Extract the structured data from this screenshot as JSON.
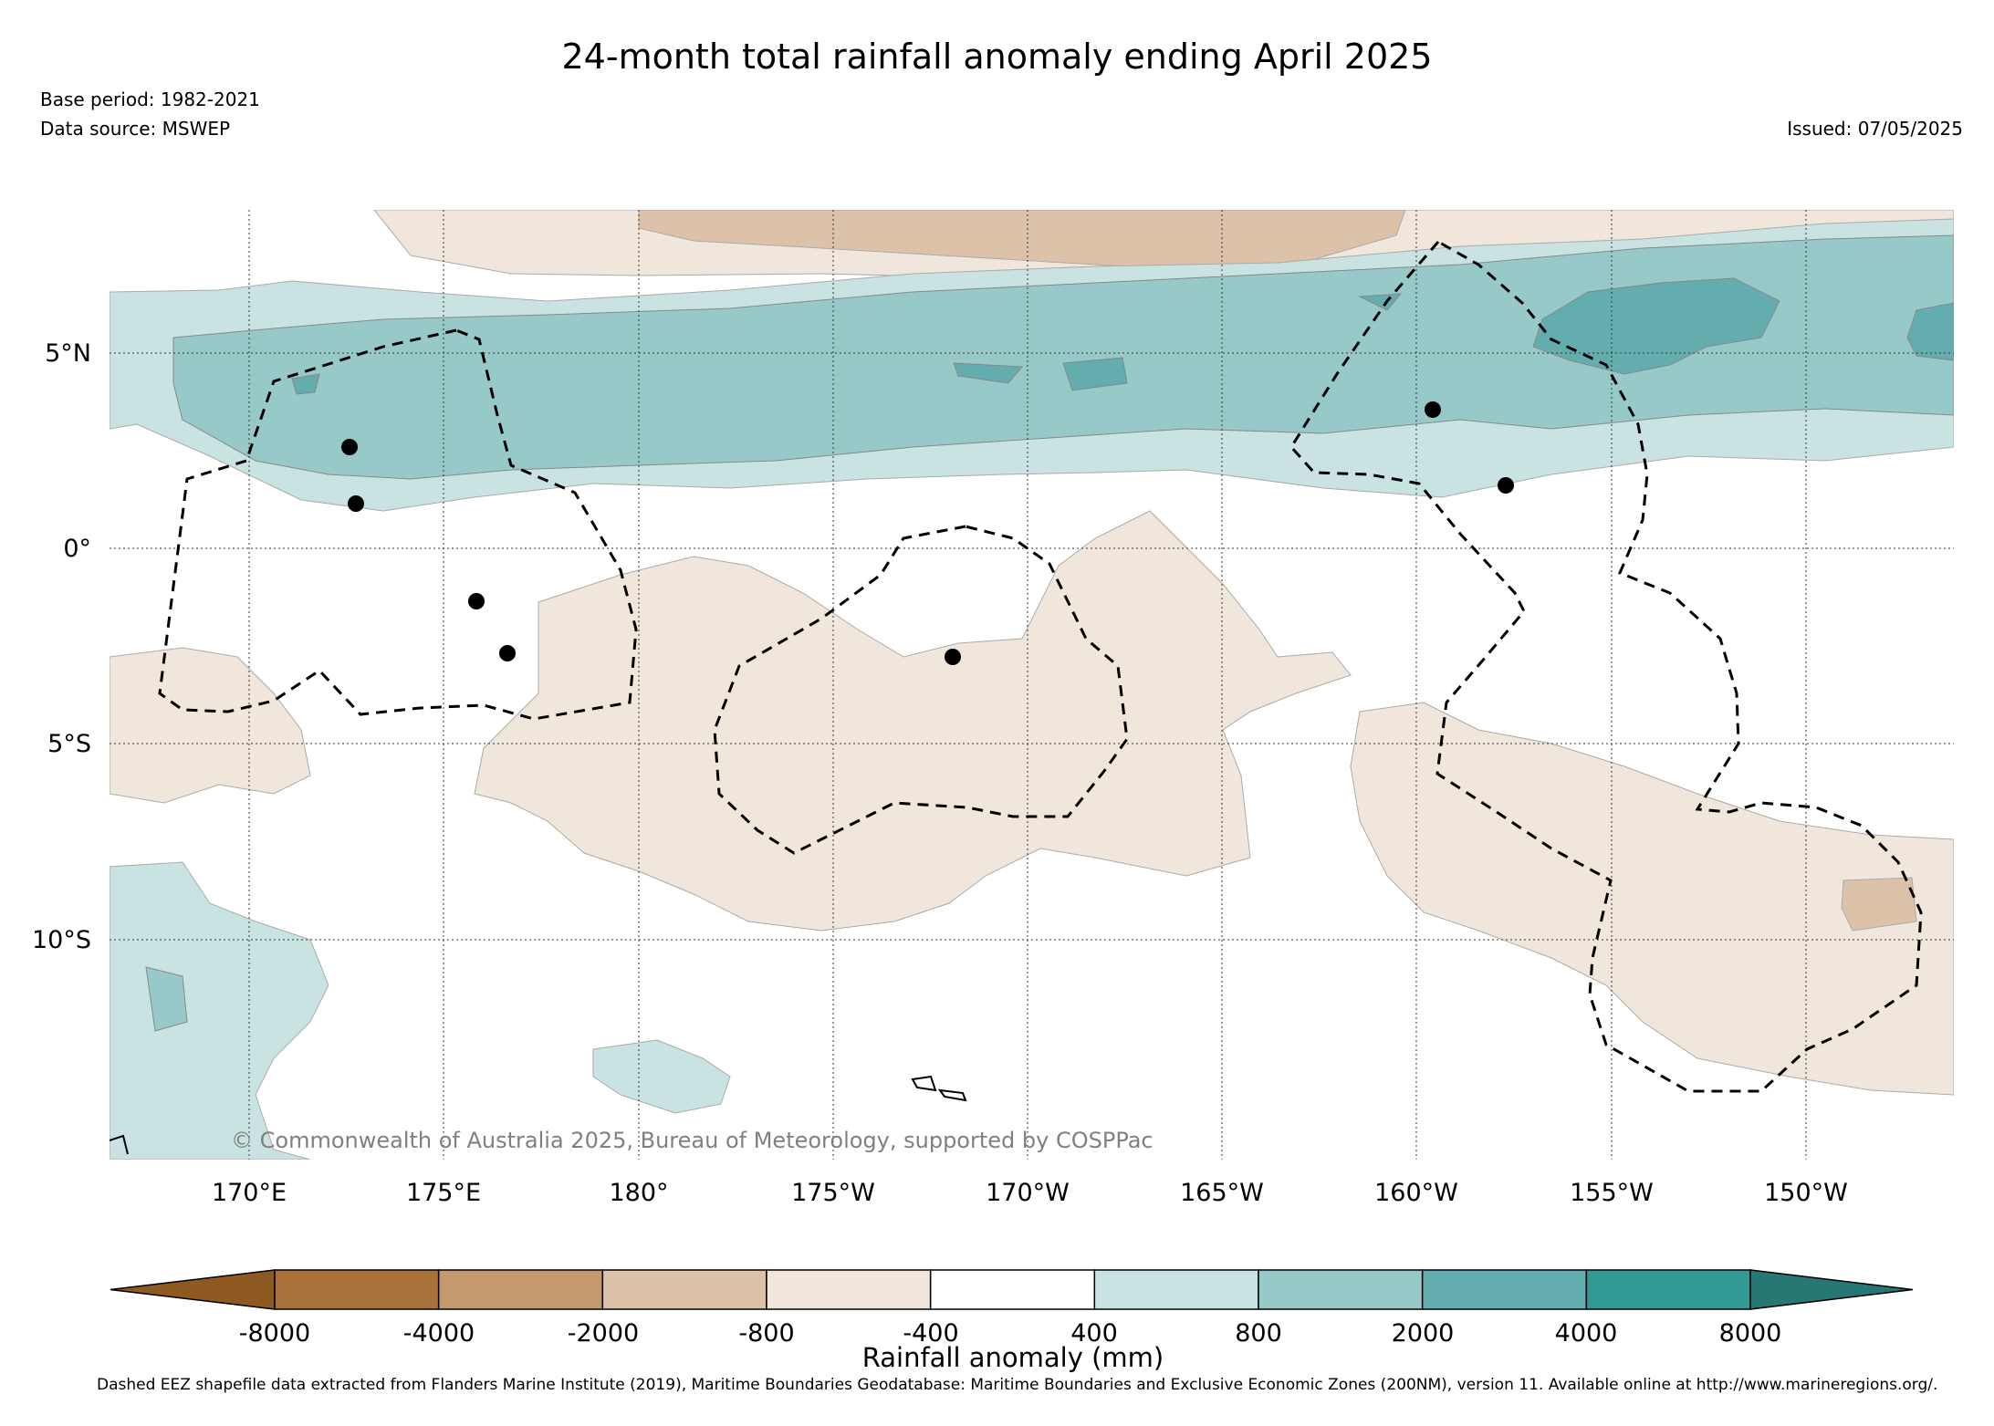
{
  "title": "24-month total rainfall anomaly ending April 2025",
  "base_period": "Base period: 1982-2021",
  "data_source": "Data source: MSWEP",
  "issued": "Issued: 07/05/2025",
  "copyright": "© Commonwealth of Australia 2025, Bureau of Meteorology, supported by COSPPac",
  "map": {
    "lon_labels": [
      "170°E",
      "175°E",
      "180°",
      "175°W",
      "170°W",
      "165°W",
      "160°W",
      "155°W",
      "150°W"
    ],
    "lat_labels": [
      "5°N",
      "0°",
      "5°S",
      "10°S"
    ],
    "gridlines": true,
    "eez_boundaries": "dashed",
    "island_markers": "filled black circles"
  },
  "colorbar": {
    "label": "Rainfall anomaly (mm)",
    "tick_labels": [
      "-8000",
      "-4000",
      "-2000",
      "-800",
      "-400",
      "400",
      "800",
      "2000",
      "4000",
      "8000"
    ],
    "colors": [
      "#8e5a22",
      "#a9713a",
      "#c4996e",
      "#dcc2a9",
      "#f1e6dc",
      "#ffffff",
      "#c9e3e3",
      "#98c9c9",
      "#63adae",
      "#329995",
      "#277775"
    ]
  },
  "footnote": "Dashed EEZ shapefile data extracted from Flanders Marine Institute (2019), Maritime Boundaries Geodatabase: Maritime Boundaries and Exclusive Economic Zones (200NM), version 11. Available online at http://www.marineregions.org/."
}
